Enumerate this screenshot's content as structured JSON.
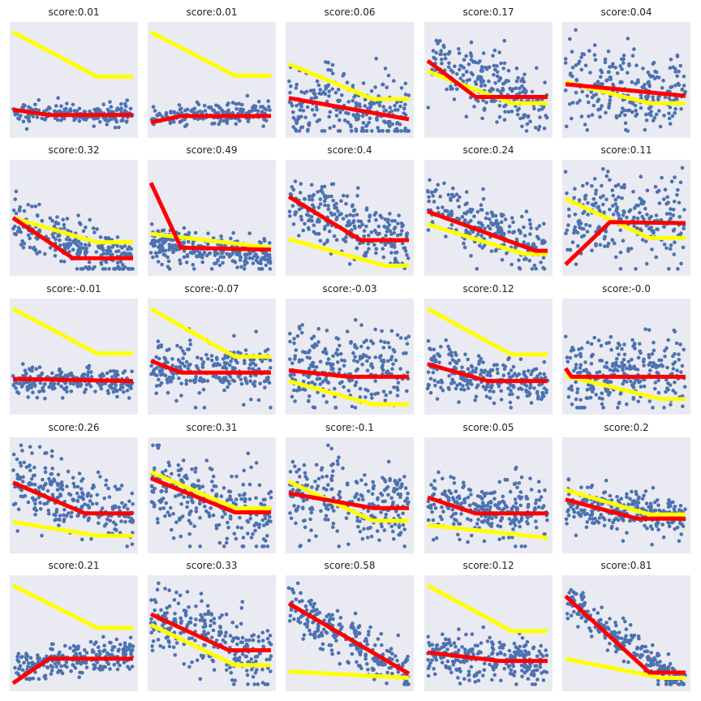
{
  "figure": {
    "rows": 5,
    "cols": 5,
    "colors": {
      "panel_bg": "#eaeaf2",
      "points": "#4c72b0",
      "fit_line": "#ff0000",
      "reference_line": "#ffff00",
      "title_text": "#222222"
    }
  },
  "chart_data": [
    {
      "type": "scatter",
      "title": "score:0.01",
      "x_range": [
        0,
        1
      ],
      "y_range": [
        0,
        1
      ],
      "points": {
        "n": 180,
        "x": [
          0,
          1
        ],
        "base": 0.18,
        "slope": 0,
        "noise": 0.05
      },
      "red": [
        [
          0,
          0.22
        ],
        [
          0.3,
          0.17
        ],
        [
          1,
          0.17
        ]
      ],
      "yellow": [
        [
          0,
          0.95
        ],
        [
          0.7,
          0.53
        ],
        [
          1,
          0.53
        ]
      ]
    },
    {
      "type": "scatter",
      "title": "score:0.01",
      "x_range": [
        0,
        1
      ],
      "y_range": [
        0,
        1
      ],
      "points": {
        "n": 180,
        "x": [
          0,
          1
        ],
        "base": 0.16,
        "slope": 0.04,
        "noise": 0.05
      },
      "red": [
        [
          0,
          0.1
        ],
        [
          0.25,
          0.16
        ],
        [
          1,
          0.16
        ]
      ],
      "yellow": [
        [
          0,
          0.95
        ],
        [
          0.7,
          0.54
        ],
        [
          1,
          0.54
        ]
      ]
    },
    {
      "type": "scatter",
      "title": "score:0.06",
      "x_range": [
        0,
        1
      ],
      "y_range": [
        0,
        1
      ],
      "points": {
        "n": 240,
        "x": [
          0,
          1
        ],
        "base": 0.32,
        "slope": -0.18,
        "noise": 0.16
      },
      "red": [
        [
          0,
          0.33
        ],
        [
          1,
          0.13
        ]
      ],
      "yellow": [
        [
          0,
          0.65
        ],
        [
          0.7,
          0.32
        ],
        [
          1,
          0.32
        ]
      ]
    },
    {
      "type": "scatter",
      "title": "score:0.17",
      "x_range": [
        0,
        1
      ],
      "y_range": [
        0,
        1
      ],
      "points": {
        "n": 240,
        "x": [
          0,
          1
        ],
        "base": 0.68,
        "slope": -0.45,
        "noise": 0.15
      },
      "red": [
        [
          0,
          0.68
        ],
        [
          0.4,
          0.34
        ],
        [
          1,
          0.34
        ]
      ],
      "yellow": [
        [
          0,
          0.58
        ],
        [
          0.7,
          0.28
        ],
        [
          1,
          0.28
        ]
      ]
    },
    {
      "type": "scatter",
      "title": "score:0.04",
      "x_range": [
        0,
        1
      ],
      "y_range": [
        0,
        1
      ],
      "points": {
        "n": 260,
        "x": [
          0,
          1
        ],
        "base": 0.48,
        "slope": -0.1,
        "noise": 0.18
      },
      "red": [
        [
          0,
          0.46
        ],
        [
          1,
          0.35
        ]
      ],
      "yellow": [
        [
          0,
          0.48
        ],
        [
          0.7,
          0.28
        ],
        [
          1,
          0.28
        ]
      ]
    },
    {
      "type": "scatter",
      "title": "score:0.32",
      "x_range": [
        0,
        1
      ],
      "y_range": [
        0,
        1
      ],
      "points": {
        "n": 260,
        "x": [
          0,
          1
        ],
        "base": 0.45,
        "slope": -0.38,
        "noise": 0.12
      },
      "red": [
        [
          0,
          0.5
        ],
        [
          0.5,
          0.12
        ],
        [
          1,
          0.12
        ]
      ],
      "yellow": [
        [
          0,
          0.5
        ],
        [
          0.7,
          0.27
        ],
        [
          1,
          0.27
        ]
      ]
    },
    {
      "type": "scatter",
      "title": "score:0.49",
      "x_range": [
        0,
        1
      ],
      "y_range": [
        0,
        1
      ],
      "points": {
        "n": 260,
        "x": [
          0,
          1
        ],
        "base": 0.25,
        "slope": -0.1,
        "noise": 0.08
      },
      "red": [
        [
          0,
          0.83
        ],
        [
          0.25,
          0.22
        ],
        [
          1,
          0.2
        ]
      ],
      "yellow": [
        [
          0,
          0.35
        ],
        [
          1,
          0.22
        ]
      ]
    },
    {
      "type": "scatter",
      "title": "score:0.4",
      "x_range": [
        0,
        1
      ],
      "y_range": [
        0,
        1
      ],
      "points": {
        "n": 260,
        "x": [
          0,
          1
        ],
        "base": 0.65,
        "slope": -0.4,
        "noise": 0.14
      },
      "red": [
        [
          0,
          0.7
        ],
        [
          0.6,
          0.29
        ],
        [
          1,
          0.29
        ]
      ],
      "yellow": [
        [
          0,
          0.3
        ],
        [
          0.8,
          0.05
        ],
        [
          1,
          0.05
        ]
      ]
    },
    {
      "type": "scatter",
      "title": "score:0.24",
      "x_range": [
        0,
        1
      ],
      "y_range": [
        0,
        1
      ],
      "points": {
        "n": 240,
        "x": [
          0,
          1
        ],
        "base": 0.6,
        "slope": -0.4,
        "noise": 0.14
      },
      "red": [
        [
          0,
          0.56
        ],
        [
          0.9,
          0.19
        ],
        [
          1,
          0.19
        ]
      ],
      "yellow": [
        [
          0,
          0.44
        ],
        [
          0.8,
          0.16
        ],
        [
          1,
          0.16
        ]
      ]
    },
    {
      "type": "scatter",
      "title": "score:0.11",
      "x_range": [
        0,
        1
      ],
      "y_range": [
        0,
        1
      ],
      "points": {
        "n": 240,
        "x": [
          0,
          1
        ],
        "base": 0.5,
        "slope": 0,
        "noise": 0.2
      },
      "red": [
        [
          0,
          0.06
        ],
        [
          0.37,
          0.46
        ],
        [
          1,
          0.45
        ]
      ],
      "yellow": [
        [
          0,
          0.68
        ],
        [
          0.7,
          0.31
        ],
        [
          1,
          0.31
        ]
      ]
    },
    {
      "type": "scatter",
      "title": "score:-0.01",
      "x_range": [
        0,
        1
      ],
      "y_range": [
        0,
        1
      ],
      "points": {
        "n": 240,
        "x": [
          0,
          1
        ],
        "base": 0.27,
        "slope": 0,
        "noise": 0.06
      },
      "red": [
        [
          0,
          0.29
        ],
        [
          1,
          0.27
        ]
      ],
      "yellow": [
        [
          0,
          0.95
        ],
        [
          0.7,
          0.53
        ],
        [
          1,
          0.53
        ]
      ]
    },
    {
      "type": "scatter",
      "title": "score:-0.07",
      "x_range": [
        0,
        1
      ],
      "y_range": [
        0,
        1
      ],
      "points": {
        "n": 240,
        "x": [
          0,
          1
        ],
        "base": 0.38,
        "slope": 0,
        "noise": 0.12
      },
      "red": [
        [
          0,
          0.46
        ],
        [
          0.25,
          0.35
        ],
        [
          1,
          0.35
        ]
      ],
      "yellow": [
        [
          0,
          0.95
        ],
        [
          0.7,
          0.5
        ],
        [
          1,
          0.5
        ]
      ]
    },
    {
      "type": "scatter",
      "title": "score:-0.03",
      "x_range": [
        0,
        1
      ],
      "y_range": [
        0,
        1
      ],
      "points": {
        "n": 260,
        "x": [
          0,
          1
        ],
        "base": 0.4,
        "slope": 0,
        "noise": 0.18
      },
      "red": [
        [
          0,
          0.37
        ],
        [
          0.5,
          0.31
        ],
        [
          1,
          0.31
        ]
      ],
      "yellow": [
        [
          0,
          0.27
        ],
        [
          0.7,
          0.05
        ],
        [
          1,
          0.05
        ]
      ]
    },
    {
      "type": "scatter",
      "title": "score:0.12",
      "x_range": [
        0,
        1
      ],
      "y_range": [
        0,
        1
      ],
      "points": {
        "n": 260,
        "x": [
          0,
          1
        ],
        "base": 0.37,
        "slope": -0.12,
        "noise": 0.12
      },
      "red": [
        [
          0,
          0.43
        ],
        [
          0.5,
          0.27
        ],
        [
          1,
          0.27
        ]
      ],
      "yellow": [
        [
          0,
          0.95
        ],
        [
          0.7,
          0.52
        ],
        [
          1,
          0.52
        ]
      ]
    },
    {
      "type": "scatter",
      "title": "score:-0.0",
      "x_range": [
        0,
        1
      ],
      "y_range": [
        0,
        1
      ],
      "points": {
        "n": 260,
        "x": [
          0,
          1
        ],
        "base": 0.35,
        "slope": 0,
        "noise": 0.2
      },
      "red": [
        [
          0,
          0.39
        ],
        [
          0.05,
          0.31
        ],
        [
          1,
          0.31
        ]
      ],
      "yellow": [
        [
          0,
          0.32
        ],
        [
          0.8,
          0.1
        ],
        [
          1,
          0.1
        ]
      ]
    },
    {
      "type": "scatter",
      "title": "score:0.26",
      "x_range": [
        0,
        1
      ],
      "y_range": [
        0,
        1
      ],
      "points": {
        "n": 260,
        "x": [
          0,
          1
        ],
        "base": 0.62,
        "slope": -0.3,
        "noise": 0.16
      },
      "red": [
        [
          0,
          0.62
        ],
        [
          0.6,
          0.33
        ],
        [
          1,
          0.33
        ]
      ],
      "yellow": [
        [
          0,
          0.25
        ],
        [
          0.7,
          0.12
        ],
        [
          1,
          0.12
        ]
      ]
    },
    {
      "type": "scatter",
      "title": "score:0.31",
      "x_range": [
        0,
        1
      ],
      "y_range": [
        0,
        1
      ],
      "points": {
        "n": 260,
        "x": [
          0,
          1
        ],
        "base": 0.6,
        "slope": -0.32,
        "noise": 0.2
      },
      "red": [
        [
          0,
          0.66
        ],
        [
          0.7,
          0.34
        ],
        [
          1,
          0.34
        ]
      ],
      "yellow": [
        [
          0,
          0.72
        ],
        [
          0.7,
          0.38
        ],
        [
          1,
          0.38
        ]
      ]
    },
    {
      "type": "scatter",
      "title": "score:-0.1",
      "x_range": [
        0,
        1
      ],
      "y_range": [
        0,
        1
      ],
      "points": {
        "n": 260,
        "x": [
          0,
          1
        ],
        "base": 0.5,
        "slope": -0.1,
        "noise": 0.2
      },
      "red": [
        [
          0,
          0.52
        ],
        [
          0.7,
          0.38
        ],
        [
          1,
          0.38
        ]
      ],
      "yellow": [
        [
          0,
          0.63
        ],
        [
          0.7,
          0.26
        ],
        [
          1,
          0.26
        ]
      ]
    },
    {
      "type": "scatter",
      "title": "score:0.05",
      "x_range": [
        0,
        1
      ],
      "y_range": [
        0,
        1
      ],
      "points": {
        "n": 260,
        "x": [
          0,
          1
        ],
        "base": 0.4,
        "slope": -0.07,
        "noise": 0.14
      },
      "red": [
        [
          0,
          0.48
        ],
        [
          0.4,
          0.33
        ],
        [
          1,
          0.33
        ]
      ],
      "yellow": [
        [
          0,
          0.22
        ],
        [
          1,
          0.1
        ]
      ]
    },
    {
      "type": "scatter",
      "title": "score:0.2",
      "x_range": [
        0,
        1
      ],
      "y_range": [
        0,
        1
      ],
      "points": {
        "n": 260,
        "x": [
          0,
          1
        ],
        "base": 0.4,
        "slope": -0.1,
        "noise": 0.1
      },
      "red": [
        [
          0,
          0.46
        ],
        [
          0.6,
          0.28
        ],
        [
          1,
          0.28
        ]
      ],
      "yellow": [
        [
          0,
          0.55
        ],
        [
          0.7,
          0.32
        ],
        [
          1,
          0.32
        ]
      ]
    },
    {
      "type": "scatter",
      "title": "score:0.21",
      "x_range": [
        0,
        1
      ],
      "y_range": [
        0,
        1
      ],
      "points": {
        "n": 240,
        "x": [
          0,
          1
        ],
        "base": 0.18,
        "slope": 0.15,
        "noise": 0.07
      },
      "red": [
        [
          0,
          0.03
        ],
        [
          0.3,
          0.26
        ],
        [
          1,
          0.26
        ]
      ],
      "yellow": [
        [
          0,
          0.95
        ],
        [
          0.7,
          0.55
        ],
        [
          1,
          0.55
        ]
      ]
    },
    {
      "type": "scatter",
      "title": "score:0.33",
      "x_range": [
        0,
        1
      ],
      "y_range": [
        0,
        1
      ],
      "points": {
        "n": 260,
        "x": [
          0,
          1
        ],
        "base": 0.65,
        "slope": -0.38,
        "noise": 0.17
      },
      "red": [
        [
          0,
          0.68
        ],
        [
          0.65,
          0.34
        ],
        [
          1,
          0.34
        ]
      ],
      "yellow": [
        [
          0,
          0.58
        ],
        [
          0.7,
          0.2
        ],
        [
          1,
          0.2
        ]
      ]
    },
    {
      "type": "scatter",
      "title": "score:0.58",
      "x_range": [
        0,
        1
      ],
      "y_range": [
        0,
        1
      ],
      "points": {
        "n": 260,
        "x": [
          0,
          1
        ],
        "base": 0.76,
        "slope": -0.66,
        "noise": 0.1
      },
      "red": [
        [
          0,
          0.78
        ],
        [
          1,
          0.12
        ]
      ],
      "yellow": [
        [
          0,
          0.14
        ],
        [
          1,
          0.08
        ]
      ]
    },
    {
      "type": "scatter",
      "title": "score:0.12",
      "x_range": [
        0,
        1
      ],
      "y_range": [
        0,
        1
      ],
      "points": {
        "n": 260,
        "x": [
          0,
          1
        ],
        "base": 0.3,
        "slope": -0.08,
        "noise": 0.1
      },
      "red": [
        [
          0,
          0.32
        ],
        [
          0.6,
          0.24
        ],
        [
          1,
          0.24
        ]
      ],
      "yellow": [
        [
          0,
          0.95
        ],
        [
          0.7,
          0.52
        ],
        [
          1,
          0.52
        ]
      ]
    },
    {
      "type": "scatter",
      "title": "score:0.81",
      "x_range": [
        0,
        1
      ],
      "y_range": [
        0,
        1
      ],
      "points": {
        "n": 240,
        "x": [
          0,
          1
        ],
        "base": 0.8,
        "slope": -0.78,
        "noise": 0.07
      },
      "red": [
        [
          0,
          0.85
        ],
        [
          0.7,
          0.13
        ],
        [
          1,
          0.13
        ]
      ],
      "yellow": [
        [
          0,
          0.26
        ],
        [
          0.8,
          0.08
        ],
        [
          1,
          0.08
        ]
      ]
    }
  ]
}
